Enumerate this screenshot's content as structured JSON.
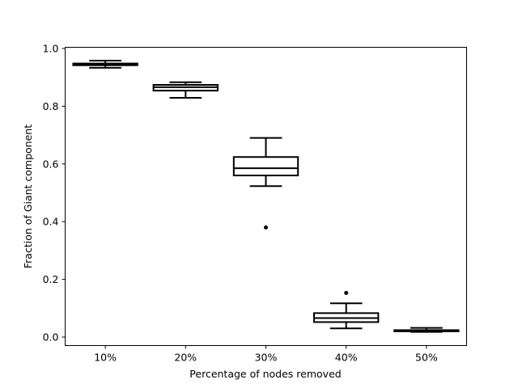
{
  "chart_data": {
    "type": "box",
    "title": "",
    "xlabel": "Percentage of nodes removed",
    "ylabel": "Fraction of Giant component",
    "ylim": [
      -0.03,
      1.0
    ],
    "yticks": [
      "0.0",
      "0.2",
      "0.4",
      "0.6",
      "0.8",
      "1.0"
    ],
    "ytick_values": [
      0.0,
      0.2,
      0.4,
      0.6,
      0.8,
      1.0
    ],
    "categories": [
      "10%",
      "20%",
      "30%",
      "40%",
      "50%"
    ],
    "boxes": [
      {
        "category": "10%",
        "whislo": 0.933,
        "q1": 0.942,
        "med": 0.946,
        "q3": 0.948,
        "whishi": 0.958,
        "fliers": []
      },
      {
        "category": "20%",
        "whislo": 0.829,
        "q1": 0.854,
        "med": 0.866,
        "q3": 0.874,
        "whishi": 0.883,
        "fliers": []
      },
      {
        "category": "30%",
        "whislo": 0.523,
        "q1": 0.56,
        "med": 0.585,
        "q3": 0.624,
        "whishi": 0.69,
        "fliers": [
          0.38
        ]
      },
      {
        "category": "40%",
        "whislo": 0.03,
        "q1": 0.052,
        "med": 0.066,
        "q3": 0.083,
        "whishi": 0.117,
        "fliers": [
          0.153
        ]
      },
      {
        "category": "50%",
        "whislo": 0.018,
        "q1": 0.02,
        "med": 0.022,
        "q3": 0.024,
        "whishi": 0.032,
        "fliers": []
      }
    ],
    "grid": false,
    "legend": "none"
  }
}
